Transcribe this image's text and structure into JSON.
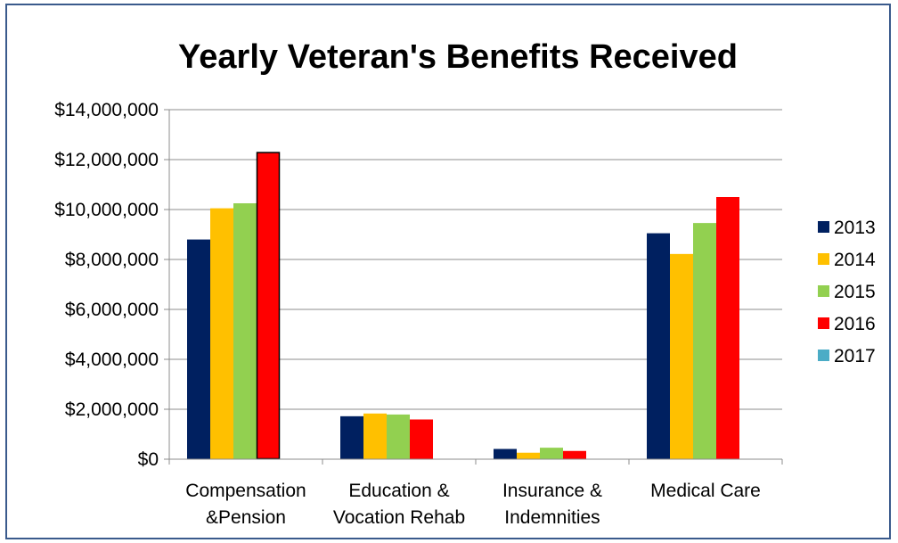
{
  "chart_data": {
    "type": "bar",
    "title": "Yearly Veteran's Benefits Received",
    "xlabel": "",
    "ylabel": "",
    "ylim": [
      0,
      14000000
    ],
    "yticks": [
      0,
      2000000,
      4000000,
      6000000,
      8000000,
      10000000,
      12000000,
      14000000
    ],
    "ytick_labels": [
      "$0",
      "$2,000,000",
      "$4,000,000",
      "$6,000,000",
      "$8,000,000",
      "$10,000,000",
      "$12,000,000",
      "$14,000,000"
    ],
    "categories": [
      [
        "Compensation",
        "&Pension"
      ],
      [
        "Education &",
        "Vocation Rehab"
      ],
      [
        "Insurance &",
        "Indemnities"
      ],
      [
        "Medical Care"
      ]
    ],
    "series": [
      {
        "name": "2013",
        "color": "#002060",
        "values": [
          8800000,
          1720000,
          410000,
          9050000
        ]
      },
      {
        "name": "2014",
        "color": "#ffc000",
        "values": [
          10050000,
          1830000,
          260000,
          8220000
        ]
      },
      {
        "name": "2015",
        "color": "#92d050",
        "values": [
          10250000,
          1790000,
          460000,
          9460000
        ]
      },
      {
        "name": "2016",
        "color": "#ff0000",
        "values": [
          12300000,
          1590000,
          330000,
          10500000
        ]
      },
      {
        "name": "2017",
        "color": "#4bacc6",
        "values": [
          0,
          0,
          0,
          0
        ]
      }
    ],
    "grid": true,
    "legend": "right"
  }
}
